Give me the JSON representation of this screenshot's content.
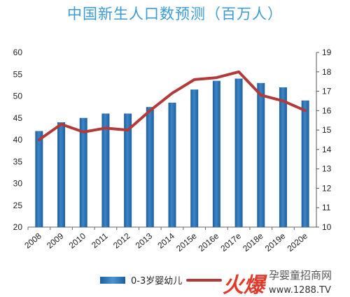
{
  "chart_data": {
    "type": "bar",
    "title": "中国新生人口数预测（百万人）",
    "categories": [
      "2008",
      "2009",
      "2010",
      "2011",
      "2012",
      "2013",
      "2014",
      "2015e",
      "2016e",
      "2017e",
      "2018e",
      "2019e",
      "2020e"
    ],
    "series": [
      {
        "name": "0-3岁婴幼儿",
        "type": "bar",
        "axis": "left",
        "values": [
          42,
          44,
          45,
          46,
          46,
          47.5,
          48.5,
          51.5,
          53.5,
          54,
          53,
          52,
          49
        ],
        "color": "#2e75b6"
      },
      {
        "name": "",
        "type": "line",
        "axis": "right",
        "values": [
          14.5,
          15.3,
          14.9,
          15.1,
          15.0,
          16.0,
          16.9,
          17.6,
          17.7,
          18.0,
          16.8,
          16.5,
          16.0
        ],
        "color": "#b23a3a"
      }
    ],
    "left_axis": {
      "min": 20,
      "max": 60,
      "ticks": [
        20,
        25,
        30,
        35,
        40,
        45,
        50,
        55,
        60
      ]
    },
    "right_axis": {
      "min": 10,
      "max": 19,
      "ticks": [
        10,
        11,
        12,
        13,
        14,
        15,
        16,
        17,
        18,
        19
      ]
    },
    "legend_position": "bottom",
    "grid": false
  },
  "watermark": {
    "logo_text": "火爆",
    "site_name": "孕婴童招商网",
    "url": "www.1288.TV"
  }
}
